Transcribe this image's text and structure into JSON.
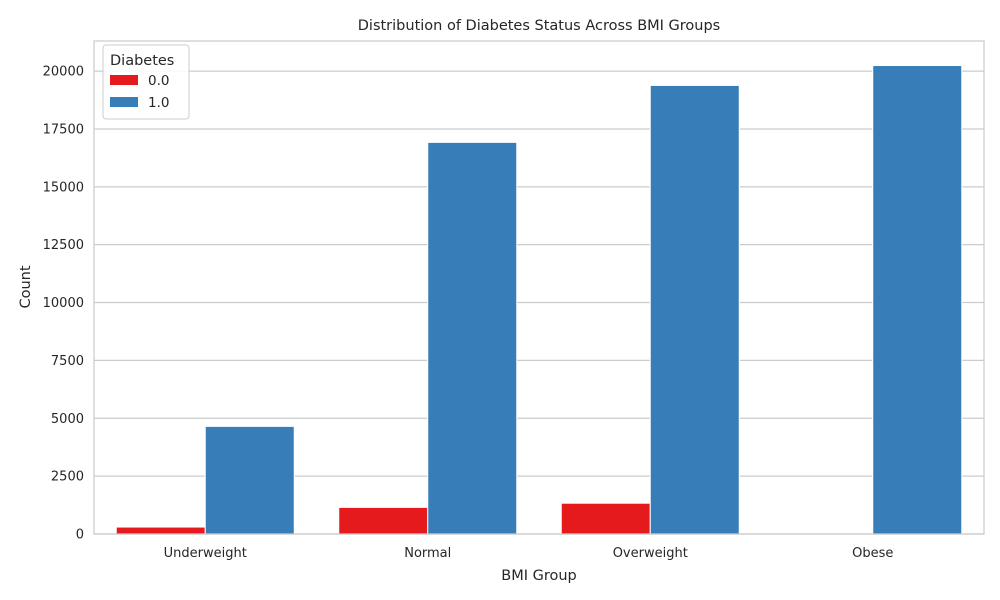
{
  "chart_data": {
    "type": "bar",
    "title": "Distribution of Diabetes Status Across BMI Groups",
    "xlabel": "BMI Group",
    "ylabel": "Count",
    "categories": [
      "Underweight",
      "Normal",
      "Overweight",
      "Obese"
    ],
    "series": [
      {
        "name": "0.0",
        "color": "#e41a1c",
        "values": [
          300,
          1150,
          1330,
          0
        ]
      },
      {
        "name": "1.0",
        "color": "#377eb8",
        "values": [
          4650,
          16920,
          19380,
          20240
        ]
      }
    ],
    "ylim": [
      0,
      21300
    ],
    "yticks": [
      0,
      2500,
      5000,
      7500,
      10000,
      12500,
      15000,
      17500,
      20000
    ],
    "ytick_labels": [
      "0",
      "2500",
      "5000",
      "7500",
      "10000",
      "12500",
      "15000",
      "17500",
      "20000"
    ],
    "grid": true,
    "legend": {
      "title": "Diabetes",
      "placement": "top-left"
    }
  }
}
